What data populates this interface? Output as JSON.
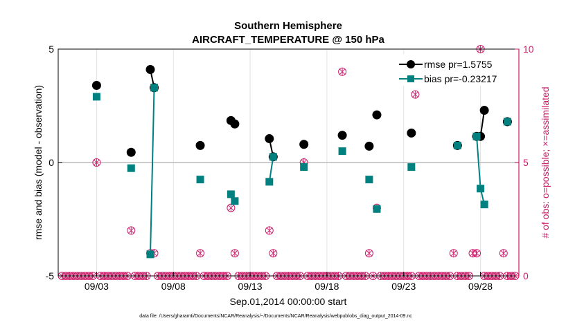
{
  "chart_data": {
    "type": "line",
    "title": "Southern Hemisphere",
    "subtitle": "AIRCRAFT_TEMPERATURE @ 150 hPa",
    "xlabel": "Sep.01,2014 00:00:00 start",
    "ylabel": "rmse and bias (model - observation)",
    "y2label": "# of obs: o=possible; ×=assimilated",
    "footnote": "data file: /Users/gharamti/Documents/NCAR/Reanalysis/~/Documents/NCAR/Reanalysis/webpub/obs_diag_output_2014-09.nc",
    "xlim": [
      0.5,
      30.5
    ],
    "ylim": [
      -5,
      5
    ],
    "y2lim": [
      0,
      10
    ],
    "x_ticks": [
      3,
      8,
      13,
      18,
      23,
      28
    ],
    "x_tick_labels": [
      "09/03",
      "09/08",
      "09/13",
      "09/18",
      "09/23",
      "09/28"
    ],
    "y_ticks": [
      -5,
      0,
      5
    ],
    "y_tick_labels": [
      "-5",
      "0",
      "5"
    ],
    "y2_ticks": [
      0,
      5,
      10
    ],
    "y2_tick_labels": [
      "0",
      "5",
      "10"
    ],
    "grid": "vertical",
    "legend_position": "top-right",
    "colors": {
      "rmse": "#000000",
      "bias": "#00807f",
      "obs": "#cc1d6a",
      "zero_line": "#bbbbbb"
    },
    "series": [
      {
        "name": "rmse pr=1.5755",
        "marker": "circle",
        "points": [
          [
            3,
            3.4
          ],
          [
            5.25,
            0.45
          ],
          [
            6.5,
            4.1
          ],
          [
            6.75,
            3.3
          ],
          [
            9.75,
            0.75
          ],
          [
            11.75,
            1.85
          ],
          [
            12,
            1.7
          ],
          [
            14.25,
            1.05
          ],
          [
            14.5,
            0.25
          ],
          [
            16.5,
            0.8
          ],
          [
            19,
            1.2
          ],
          [
            20.75,
            0.72
          ],
          [
            21.25,
            2.1
          ],
          [
            23.5,
            1.3
          ],
          [
            26.5,
            0.75
          ],
          [
            27.75,
            1.15
          ],
          [
            28,
            1.15
          ],
          [
            28.25,
            2.3
          ],
          [
            29.75,
            1.8
          ]
        ],
        "segments": [
          [
            [
              6.5,
              4.1
            ],
            [
              6.75,
              3.3
            ]
          ],
          [
            [
              14.25,
              1.05
            ],
            [
              14.5,
              0.25
            ]
          ],
          [
            [
              27.75,
              1.15
            ],
            [
              28,
              1.15
            ],
            [
              28.25,
              2.3
            ]
          ]
        ]
      },
      {
        "name": "bias pr=-0.23217",
        "marker": "square",
        "points": [
          [
            3,
            2.9
          ],
          [
            5.25,
            -0.25
          ],
          [
            6.5,
            -4.05
          ],
          [
            6.75,
            3.3
          ],
          [
            9.75,
            -0.75
          ],
          [
            11.75,
            -1.4
          ],
          [
            12,
            -1.7
          ],
          [
            14.25,
            -0.85
          ],
          [
            14.5,
            0.25
          ],
          [
            16.5,
            -0.2
          ],
          [
            19,
            0.5
          ],
          [
            20.75,
            -0.75
          ],
          [
            21.25,
            -2.05
          ],
          [
            23.5,
            -0.2
          ],
          [
            26.5,
            0.75
          ],
          [
            27.75,
            1.15
          ],
          [
            28,
            -1.15
          ],
          [
            28.25,
            -1.85
          ],
          [
            29.75,
            1.8
          ]
        ],
        "segments": [
          [
            [
              6.5,
              -4.05
            ],
            [
              6.75,
              3.3
            ]
          ],
          [
            [
              14.25,
              -0.85
            ],
            [
              14.5,
              0.25
            ]
          ],
          [
            [
              26.5,
              0.75
            ],
            [
              26.5,
              0.75
            ]
          ],
          [
            [
              27.75,
              1.15
            ],
            [
              28,
              -1.15
            ],
            [
              28.25,
              -1.85
            ]
          ]
        ]
      }
    ],
    "obs_counts": {
      "name": "observation counts (right axis)",
      "times": [
        0.75,
        1,
        1.25,
        1.5,
        1.75,
        2,
        2.25,
        2.5,
        2.75,
        3,
        3.25,
        3.5,
        3.75,
        4,
        4.25,
        4.5,
        4.75,
        5,
        5.25,
        5.5,
        5.75,
        6,
        6.25,
        6.5,
        6.75,
        7,
        7.25,
        7.5,
        7.75,
        8,
        8.25,
        8.5,
        8.75,
        9,
        9.25,
        9.5,
        9.75,
        10,
        10.25,
        10.5,
        10.75,
        11,
        11.25,
        11.5,
        11.75,
        12,
        12.25,
        12.5,
        12.75,
        13,
        13.25,
        13.5,
        13.75,
        14,
        14.25,
        14.5,
        14.75,
        15,
        15.25,
        15.5,
        15.75,
        16,
        16.25,
        16.5,
        16.75,
        17,
        17.25,
        17.5,
        17.75,
        18,
        18.25,
        18.5,
        18.75,
        19,
        19.25,
        19.5,
        19.75,
        20,
        20.25,
        20.5,
        20.75,
        21,
        21.25,
        21.5,
        21.75,
        22,
        22.25,
        22.5,
        22.75,
        23,
        23.25,
        23.5,
        23.75,
        24,
        24.25,
        24.5,
        24.75,
        25,
        25.25,
        25.5,
        25.75,
        26,
        26.25,
        26.5,
        26.75,
        27,
        27.25,
        27.5,
        27.75,
        28,
        28.25,
        28.5,
        28.75,
        29,
        29.25,
        29.5,
        29.75,
        30,
        30.25
      ],
      "possible": [
        0,
        0,
        0,
        0,
        0,
        0,
        0,
        0,
        0,
        5,
        0,
        0,
        0,
        0,
        0,
        0,
        0,
        0,
        2,
        0,
        0,
        0,
        0,
        1,
        1,
        0,
        0,
        0,
        0,
        0,
        0,
        0,
        0,
        0,
        0,
        0,
        1,
        0,
        0,
        0,
        0,
        0,
        0,
        0,
        3,
        1,
        0,
        0,
        0,
        0,
        0,
        0,
        0,
        0,
        2,
        1,
        0,
        0,
        0,
        0,
        0,
        0,
        0,
        5,
        0,
        0,
        0,
        0,
        0,
        0,
        0,
        0,
        0,
        9,
        0,
        0,
        0,
        0,
        0,
        0,
        1,
        0,
        3,
        0,
        0,
        0,
        0,
        0,
        0,
        0,
        0,
        0,
        8,
        0,
        0,
        0,
        0,
        0,
        0,
        0,
        0,
        0,
        1,
        0,
        0,
        0,
        0,
        1,
        1,
        10,
        0,
        0,
        0,
        0,
        0,
        1,
        0,
        0,
        0
      ],
      "assimilated": [
        0,
        0,
        0,
        0,
        0,
        0,
        0,
        0,
        0,
        5,
        0,
        0,
        0,
        0,
        0,
        0,
        0,
        0,
        2,
        0,
        0,
        0,
        0,
        1,
        1,
        0,
        0,
        0,
        0,
        0,
        0,
        0,
        0,
        0,
        0,
        0,
        1,
        0,
        0,
        0,
        0,
        0,
        0,
        0,
        3,
        1,
        0,
        0,
        0,
        0,
        0,
        0,
        0,
        0,
        2,
        1,
        0,
        0,
        0,
        0,
        0,
        0,
        0,
        5,
        0,
        0,
        0,
        0,
        0,
        0,
        0,
        0,
        0,
        9,
        0,
        0,
        0,
        0,
        0,
        0,
        1,
        0,
        3,
        0,
        0,
        0,
        0,
        0,
        0,
        0,
        0,
        0,
        8,
        0,
        0,
        0,
        0,
        0,
        0,
        0,
        0,
        0,
        1,
        0,
        0,
        0,
        0,
        1,
        1,
        10,
        0,
        0,
        0,
        0,
        0,
        1,
        0,
        0,
        0
      ]
    }
  }
}
